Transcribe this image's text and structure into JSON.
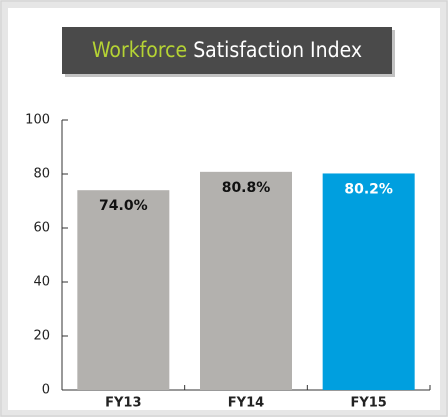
{
  "chart_data": {
    "type": "bar",
    "title": [
      "Workforce",
      "Satisfaction Index"
    ],
    "title_colors": [
      "#b5d334",
      "#ffffff"
    ],
    "categories": [
      "FY13",
      "FY14",
      "FY15"
    ],
    "values": [
      74.0,
      80.8,
      80.2
    ],
    "value_labels": [
      "74.0%",
      "80.8%",
      "80.2%"
    ],
    "colors": [
      "#b3b1ae",
      "#b3b1ae",
      "#009fdf"
    ],
    "label_colors": [
      "#111111",
      "#111111",
      "#ffffff"
    ],
    "ylim": [
      0,
      100
    ],
    "yticks": [
      0,
      20,
      40,
      60,
      80,
      100
    ],
    "grid": false
  }
}
